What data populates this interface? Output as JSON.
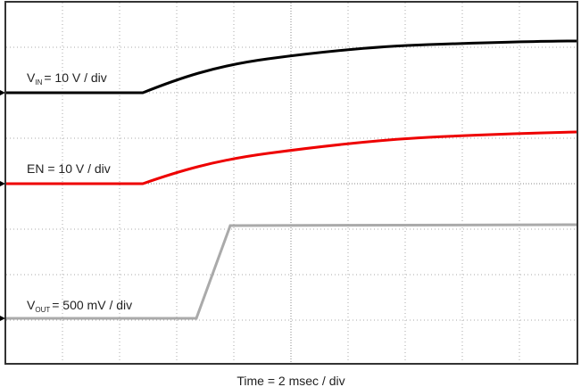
{
  "traces": [
    {
      "name": "V",
      "subscript": "IN",
      "scale": "= 10 V / div"
    },
    {
      "name": "EN",
      "scale": "= 10 V / div"
    },
    {
      "name": "V",
      "subscript": "OUT",
      "scale": "= 500 mV / div"
    }
  ],
  "x_label": "Time = 2 msec / div"
}
